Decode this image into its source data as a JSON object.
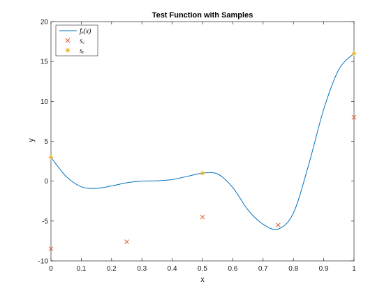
{
  "chart_data": {
    "type": "line",
    "title": "Test Function with Samples",
    "xlabel": "x",
    "ylabel": "y",
    "xlim": [
      0,
      1
    ],
    "ylim": [
      -10,
      20
    ],
    "xticks": [
      0,
      0.1,
      0.2,
      0.3,
      0.4,
      0.5,
      0.6,
      0.7,
      0.8,
      0.9,
      1
    ],
    "xtick_labels": [
      "0",
      "0.1",
      "0.2",
      "0.3",
      "0.4",
      "0.5",
      "0.6",
      "0.7",
      "0.8",
      "0.9",
      "1"
    ],
    "yticks": [
      -10,
      -5,
      0,
      5,
      10,
      15,
      20
    ],
    "ytick_labels": [
      "-10",
      "-5",
      "0",
      "5",
      "10",
      "15",
      "20"
    ],
    "grid": false,
    "legend_position": "top-left",
    "series": [
      {
        "name": "f_e(x)",
        "kind": "line",
        "color": "#0072BD",
        "x": [
          0,
          0.05,
          0.1,
          0.15,
          0.2,
          0.25,
          0.3,
          0.35,
          0.4,
          0.45,
          0.5,
          0.55,
          0.6,
          0.65,
          0.7,
          0.75,
          0.8,
          0.85,
          0.9,
          0.95,
          1.0
        ],
        "y": [
          3.0,
          0.6,
          -0.7,
          -0.9,
          -0.6,
          -0.2,
          0.0,
          0.05,
          0.2,
          0.6,
          1.0,
          0.9,
          -0.8,
          -3.6,
          -5.4,
          -6.0,
          -4.0,
          2.0,
          9.0,
          14.0,
          16.0
        ]
      },
      {
        "name": "s_c",
        "kind": "scatter",
        "marker": "x",
        "color": "#D95319",
        "x": [
          0,
          0.25,
          0.5,
          0.75,
          1.0
        ],
        "y": [
          -8.5,
          -7.6,
          -4.5,
          -5.5,
          8.0
        ]
      },
      {
        "name": "s_e",
        "kind": "scatter",
        "marker": "asterisk",
        "color": "#EDB120",
        "x": [
          0,
          0.5,
          1.0
        ],
        "y": [
          3.0,
          1.0,
          16.0
        ]
      }
    ],
    "legend": [
      {
        "label": "f_e(x)",
        "display": "fₑ(x)"
      },
      {
        "label": "s_c",
        "display": "s꜀"
      },
      {
        "label": "s_e",
        "display": "sₑ"
      }
    ]
  }
}
